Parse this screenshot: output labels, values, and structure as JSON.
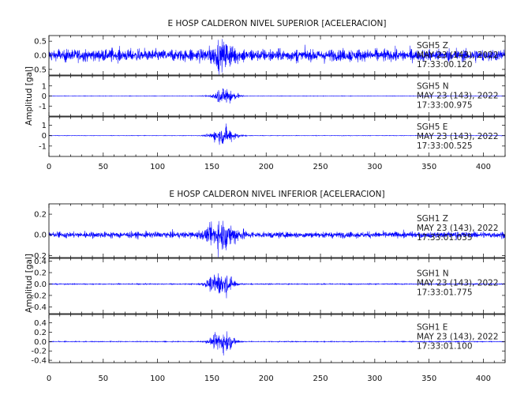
{
  "chart_data": [
    {
      "type": "line",
      "title": "E HOSP CALDERON NIVEL SUPERIOR [ACELERACION]",
      "ylabel": "Amplitud [gal]",
      "xlim": [
        0,
        420
      ],
      "x_ticks": [
        "0",
        "50",
        "100",
        "150",
        "200",
        "250",
        "300",
        "350",
        "400"
      ],
      "color": "#0000ff",
      "panels": [
        {
          "channel": "SGH5 Z",
          "date": "MAY 23 (143), 2022",
          "time": "17:33:00.120",
          "ylim": [
            -0.7,
            0.7
          ],
          "y_ticks": [
            "0.5",
            "0.0",
            "-0.5"
          ],
          "y_tick_values": [
            0.5,
            0.0,
            -0.5
          ],
          "noise_amplitude": 0.5,
          "event_amplitude": 0.6,
          "event_center": 160,
          "event_width": 12
        },
        {
          "channel": "SGH5 N",
          "date": "MAY 23 (143), 2022",
          "time": "17:33:00.975",
          "ylim": [
            -2,
            2
          ],
          "y_ticks": [
            "1",
            "0",
            "-1"
          ],
          "y_tick_values": [
            1,
            0,
            -1
          ],
          "noise_amplitude": 0.05,
          "event_amplitude": 1.6,
          "event_center": 162,
          "event_width": 10
        },
        {
          "channel": "SGH5 E",
          "date": "MAY 23 (143), 2022",
          "time": "17:33:00.525",
          "ylim": [
            -2,
            1.8
          ],
          "y_ticks": [
            "1",
            "0",
            "-1"
          ],
          "y_tick_values": [
            1,
            0,
            -1
          ],
          "noise_amplitude": 0.05,
          "event_amplitude": 1.5,
          "event_center": 161,
          "event_width": 11
        }
      ]
    },
    {
      "type": "line",
      "title": "E HOSP CALDERON NIVEL INFERIOR [ACELERACION]",
      "ylabel": "Amplitud [gal]",
      "xlim": [
        0,
        420
      ],
      "x_ticks": [
        "0",
        "50",
        "100",
        "150",
        "200",
        "250",
        "300",
        "350",
        "400"
      ],
      "color": "#0000ff",
      "panels": [
        {
          "channel": "SGH1 Z",
          "date": "MAY 23 (143), 2022",
          "time": "17:33:01.035",
          "ylim": [
            -0.22,
            0.3
          ],
          "y_ticks": [
            "0.2",
            "0.0",
            "-0.2"
          ],
          "y_tick_values": [
            0.2,
            0.0,
            -0.2
          ],
          "noise_amplitude": 0.07,
          "event_amplitude": 0.22,
          "event_center": 160,
          "event_width": 14
        },
        {
          "channel": "SGH1 N",
          "date": "MAY 23 (143), 2022",
          "time": "17:33:01.775",
          "ylim": [
            -0.52,
            0.45
          ],
          "y_ticks": [
            "0.4",
            "0.2",
            "0.0",
            "-0.2",
            "-0.4"
          ],
          "y_tick_values": [
            0.4,
            0.2,
            0.0,
            -0.2,
            -0.4
          ],
          "noise_amplitude": 0.02,
          "event_amplitude": 0.4,
          "event_center": 158,
          "event_width": 11
        },
        {
          "channel": "SGH1 E",
          "date": "MAY 23 (143), 2022",
          "time": "17:33:01.100",
          "ylim": [
            -0.45,
            0.58
          ],
          "y_ticks": [
            "0.4",
            "0.2",
            "0.0",
            "-0.2",
            "-0.4"
          ],
          "y_tick_values": [
            0.4,
            0.2,
            0.0,
            -0.2,
            -0.4
          ],
          "noise_amplitude": 0.02,
          "event_amplitude": 0.42,
          "event_center": 160,
          "event_width": 10
        }
      ]
    }
  ]
}
